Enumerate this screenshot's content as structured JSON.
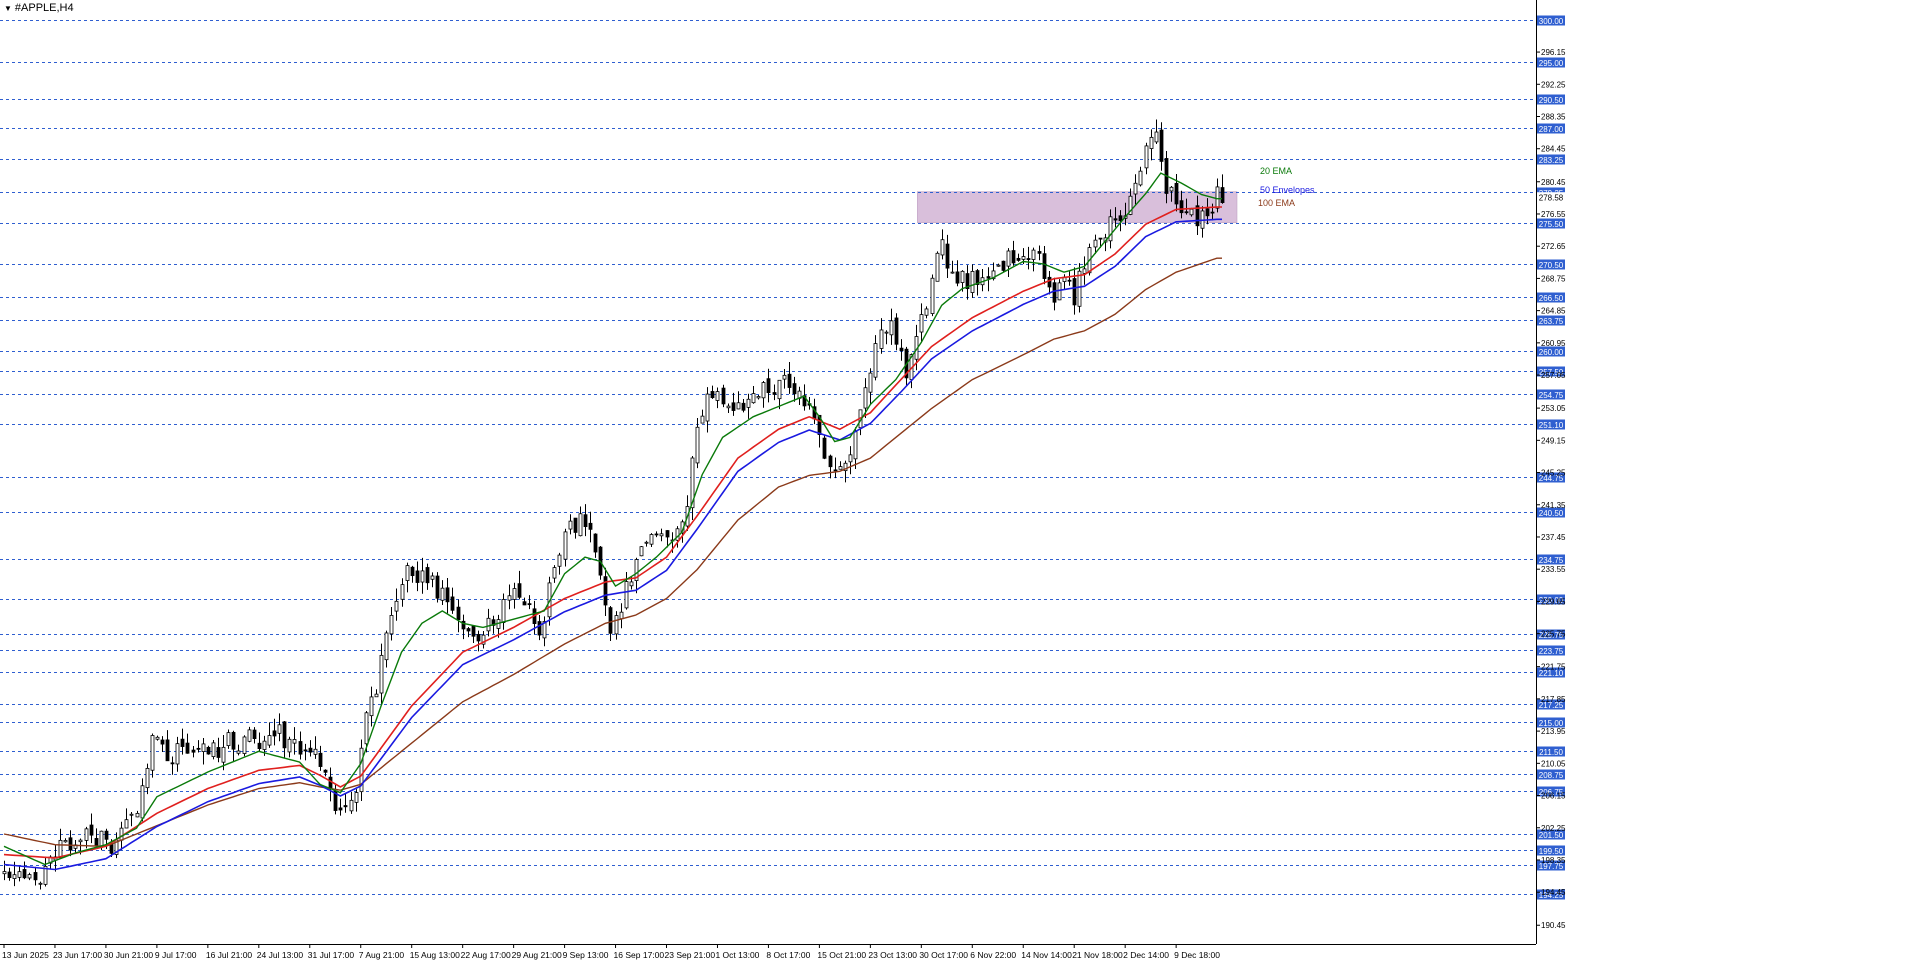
{
  "window": {
    "symbol_title": "#APPLE,H4"
  },
  "chart_data": {
    "type": "candlestick",
    "title": "#APPLE,H4",
    "ylim": [
      186.0,
      301.0
    ],
    "colors": {
      "background": "#ffffff",
      "candles": "#000000",
      "dotted_lines": "#2f5fd0",
      "price_tag": "#2f5fd0",
      "ema20": "#0a7a0a",
      "envelope_upper": "#e0201e",
      "envelope_lower": "#1a1ae0",
      "ema100": "#8b3a1a",
      "zone_fill": "#d9bfdb"
    },
    "y_ticks": [
      "296.15",
      "292.25",
      "288.35",
      "284.45",
      "280.45",
      "276.55",
      "272.65",
      "268.75",
      "264.85",
      "260.95",
      "257.05",
      "253.05",
      "249.15",
      "245.25",
      "241.35",
      "237.45",
      "233.55",
      "229.65",
      "225.75",
      "221.75",
      "217.85",
      "213.95",
      "210.05",
      "206.15",
      "202.25",
      "198.35",
      "194.45",
      "190.45"
    ],
    "levels": [
      "300.00",
      "295.00",
      "290.50",
      "287.00",
      "283.25",
      "279.25",
      "275.50",
      "270.50",
      "266.50",
      "263.75",
      "260.00",
      "257.50",
      "254.75",
      "251.10",
      "244.75",
      "240.50",
      "234.75",
      "230.00",
      "225.75",
      "223.75",
      "221.10",
      "217.25",
      "215.00",
      "211.50",
      "208.75",
      "206.75",
      "201.50",
      "199.50",
      "197.75",
      "194.25"
    ],
    "x_labels": [
      "13 Jun 2025",
      "23 Jun 17:00",
      "30 Jun 21:00",
      "9 Jul 17:00",
      "16 Jul 21:00",
      "24 Jul 13:00",
      "31 Jul 17:00",
      "7 Aug 21:00",
      "15 Aug 13:00",
      "22 Aug 17:00",
      "29 Aug 21:00",
      "9 Sep 13:00",
      "16 Sep 17:00",
      "23 Sep 21:00",
      "1 Oct 13:00",
      "8 Oct 17:00",
      "15 Oct 21:00",
      "23 Oct 13:00",
      "30 Oct 17:00",
      "6 Nov 22:00",
      "14 Nov 14:00",
      "21 Nov 18:00",
      "2 Dec 14:00",
      "9 Dec 18:00"
    ],
    "current_price": "278.58",
    "resistance_zone": {
      "from_label": "30 Oct 17:00",
      "price_low": 275.5,
      "price_high": 279.25
    },
    "legend": [
      {
        "name": "20 EMA",
        "color": "#0a7a0a"
      },
      {
        "name": "50 Envelopes",
        "color": "#1a1ae0"
      },
      {
        "name": "100 EMA",
        "color": "#8b3a1a"
      }
    ],
    "close_path": [
      [
        0,
        196.5
      ],
      [
        6,
        195.8
      ],
      [
        10,
        199.5
      ],
      [
        14,
        200.8
      ],
      [
        19,
        201.2
      ],
      [
        22,
        200.0
      ],
      [
        26,
        205.0
      ],
      [
        29,
        213.0
      ],
      [
        32,
        211.0
      ],
      [
        37,
        212.0
      ],
      [
        40,
        211.0
      ],
      [
        44,
        212.5
      ],
      [
        49,
        213.0
      ],
      [
        54,
        213.5
      ],
      [
        58,
        212.0
      ],
      [
        61,
        210.5
      ],
      [
        63,
        208.0
      ],
      [
        65,
        204.5
      ],
      [
        67,
        205.0
      ],
      [
        69,
        207.5
      ],
      [
        71,
        215.0
      ],
      [
        73,
        219.0
      ],
      [
        74,
        224.0
      ],
      [
        76,
        229.0
      ],
      [
        79,
        233.0
      ],
      [
        82,
        233.0
      ],
      [
        85,
        231.0
      ],
      [
        88,
        228.0
      ],
      [
        91,
        225.0
      ],
      [
        94,
        226.0
      ],
      [
        97,
        228.0
      ],
      [
        100,
        230.0
      ],
      [
        103,
        229.0
      ],
      [
        105,
        226.0
      ],
      [
        108,
        233.0
      ],
      [
        111,
        239.0
      ],
      [
        113,
        239.5
      ],
      [
        115,
        238.0
      ],
      [
        117,
        233.0
      ],
      [
        119,
        227.0
      ],
      [
        121,
        229.0
      ],
      [
        124,
        235.0
      ],
      [
        127,
        238.0
      ],
      [
        130,
        238.5
      ],
      [
        132,
        237.5
      ],
      [
        134,
        241.0
      ],
      [
        136,
        251.0
      ],
      [
        139,
        255.0
      ],
      [
        142,
        252.0
      ],
      [
        146,
        254.5
      ],
      [
        152,
        256.0
      ],
      [
        156,
        255.5
      ],
      [
        158,
        253.0
      ],
      [
        161,
        247.0
      ],
      [
        164,
        246.0
      ],
      [
        166,
        247.0
      ],
      [
        168,
        252.0
      ],
      [
        171,
        261.0
      ],
      [
        174,
        263.0
      ],
      [
        177,
        258.0
      ],
      [
        179,
        262.0
      ],
      [
        182,
        268.0
      ],
      [
        184,
        273.0
      ],
      [
        186,
        269.0
      ],
      [
        189,
        268.5
      ],
      [
        193,
        270.0
      ],
      [
        197,
        271.0
      ],
      [
        200,
        272.5
      ],
      [
        203,
        271.0
      ],
      [
        206,
        267.0
      ],
      [
        208,
        268.0
      ],
      [
        210,
        266.5
      ],
      [
        212,
        270.5
      ],
      [
        215,
        273.0
      ],
      [
        218,
        276.5
      ],
      [
        221,
        278.0
      ],
      [
        224,
        285.0
      ],
      [
        226,
        287.0
      ],
      [
        228,
        280.0
      ],
      [
        231,
        277.5
      ],
      [
        234,
        276.0
      ],
      [
        236,
        276.5
      ],
      [
        238,
        278.58
      ]
    ],
    "ema20_path": [
      [
        0,
        200.0
      ],
      [
        8,
        197.8
      ],
      [
        14,
        199.2
      ],
      [
        20,
        200.2
      ],
      [
        26,
        202.2
      ],
      [
        30,
        206.0
      ],
      [
        40,
        209.0
      ],
      [
        50,
        211.5
      ],
      [
        58,
        210.2
      ],
      [
        62,
        207.5
      ],
      [
        66,
        206.5
      ],
      [
        70,
        210.0
      ],
      [
        74,
        217.0
      ],
      [
        78,
        223.5
      ],
      [
        82,
        227.0
      ],
      [
        86,
        228.5
      ],
      [
        90,
        227.0
      ],
      [
        94,
        226.5
      ],
      [
        100,
        227.5
      ],
      [
        106,
        228.5
      ],
      [
        110,
        233.0
      ],
      [
        114,
        235.0
      ],
      [
        117,
        234.5
      ],
      [
        120,
        231.5
      ],
      [
        124,
        233.0
      ],
      [
        128,
        235.0
      ],
      [
        133,
        238.0
      ],
      [
        137,
        245.0
      ],
      [
        141,
        249.5
      ],
      [
        147,
        252.0
      ],
      [
        153,
        253.5
      ],
      [
        157,
        254.5
      ],
      [
        160,
        252.0
      ],
      [
        163,
        249.0
      ],
      [
        166,
        249.5
      ],
      [
        170,
        253.5
      ],
      [
        175,
        256.5
      ],
      [
        180,
        261.0
      ],
      [
        184,
        265.5
      ],
      [
        188,
        267.5
      ],
      [
        194,
        268.8
      ],
      [
        200,
        270.8
      ],
      [
        204,
        270.5
      ],
      [
        208,
        269.5
      ],
      [
        212,
        270.2
      ],
      [
        216,
        273.2
      ],
      [
        220,
        276.2
      ],
      [
        224,
        279.0
      ],
      [
        227,
        281.5
      ],
      [
        231,
        280.3
      ],
      [
        235,
        278.9
      ],
      [
        238,
        278.4
      ]
    ],
    "env_upper_path": [
      [
        0,
        199.0
      ],
      [
        10,
        198.6
      ],
      [
        20,
        200.0
      ],
      [
        30,
        204.0
      ],
      [
        40,
        207.0
      ],
      [
        50,
        209.2
      ],
      [
        58,
        209.8
      ],
      [
        62,
        208.6
      ],
      [
        66,
        207.2
      ],
      [
        70,
        208.5
      ],
      [
        80,
        217.0
      ],
      [
        90,
        223.5
      ],
      [
        100,
        226.5
      ],
      [
        110,
        230.0
      ],
      [
        118,
        232.0
      ],
      [
        124,
        232.5
      ],
      [
        130,
        235.0
      ],
      [
        136,
        240.0
      ],
      [
        144,
        247.0
      ],
      [
        152,
        250.5
      ],
      [
        158,
        252.0
      ],
      [
        164,
        250.5
      ],
      [
        170,
        252.5
      ],
      [
        176,
        256.5
      ],
      [
        182,
        260.5
      ],
      [
        190,
        264.0
      ],
      [
        200,
        267.2
      ],
      [
        206,
        268.7
      ],
      [
        212,
        269.2
      ],
      [
        218,
        271.7
      ],
      [
        224,
        275.3
      ],
      [
        230,
        277.1
      ],
      [
        238,
        277.4
      ]
    ],
    "env_lower_path": [
      [
        0,
        197.8
      ],
      [
        10,
        197.2
      ],
      [
        20,
        198.5
      ],
      [
        30,
        202.4
      ],
      [
        40,
        205.4
      ],
      [
        50,
        207.6
      ],
      [
        58,
        208.4
      ],
      [
        62,
        207.4
      ],
      [
        66,
        206.1
      ],
      [
        70,
        207.3
      ],
      [
        80,
        215.6
      ],
      [
        90,
        222.0
      ],
      [
        100,
        225.0
      ],
      [
        110,
        228.4
      ],
      [
        118,
        230.4
      ],
      [
        124,
        231.0
      ],
      [
        130,
        233.4
      ],
      [
        136,
        238.4
      ],
      [
        144,
        245.4
      ],
      [
        152,
        248.9
      ],
      [
        158,
        250.4
      ],
      [
        164,
        249.2
      ],
      [
        170,
        251.2
      ],
      [
        176,
        255.0
      ],
      [
        182,
        259.0
      ],
      [
        190,
        262.4
      ],
      [
        200,
        265.6
      ],
      [
        206,
        267.2
      ],
      [
        212,
        267.8
      ],
      [
        218,
        270.2
      ],
      [
        224,
        273.8
      ],
      [
        230,
        275.6
      ],
      [
        238,
        275.9
      ]
    ],
    "ema100_path": [
      [
        0,
        201.5
      ],
      [
        10,
        200.2
      ],
      [
        20,
        200.0
      ],
      [
        30,
        202.5
      ],
      [
        40,
        205.0
      ],
      [
        50,
        207.0
      ],
      [
        58,
        207.7
      ],
      [
        62,
        207.2
      ],
      [
        66,
        206.8
      ],
      [
        70,
        207.5
      ],
      [
        80,
        212.5
      ],
      [
        90,
        217.5
      ],
      [
        100,
        220.8
      ],
      [
        110,
        224.5
      ],
      [
        118,
        227.0
      ],
      [
        124,
        228.0
      ],
      [
        130,
        230.0
      ],
      [
        136,
        233.5
      ],
      [
        144,
        239.5
      ],
      [
        152,
        243.5
      ],
      [
        158,
        244.9
      ],
      [
        164,
        245.4
      ],
      [
        170,
        247.0
      ],
      [
        176,
        250.0
      ],
      [
        182,
        253.0
      ],
      [
        190,
        256.5
      ],
      [
        200,
        259.5
      ],
      [
        206,
        261.4
      ],
      [
        212,
        262.4
      ],
      [
        218,
        264.4
      ],
      [
        224,
        267.4
      ],
      [
        230,
        269.5
      ],
      [
        238,
        271.2
      ]
    ]
  }
}
